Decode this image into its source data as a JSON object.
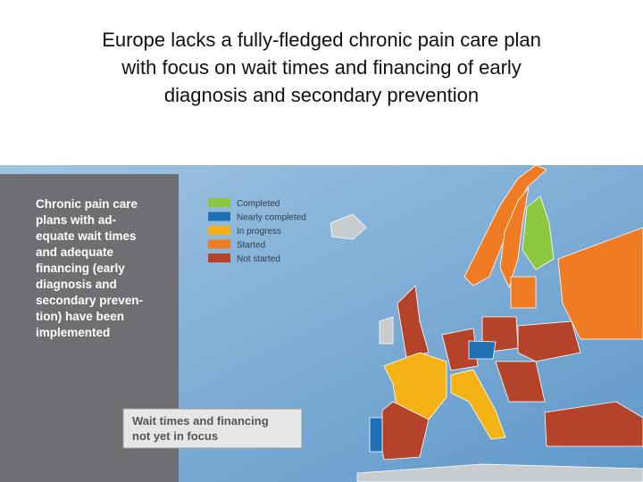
{
  "title": [
    "Europe lacks a fully-fledged chronic pain care plan",
    "with focus on wait times and financing of early",
    "diagnosis and secondary prevention"
  ],
  "panel": {
    "lines": [
      "Chronic pain care",
      "plans with ad-",
      "equate wait times",
      "and adequate",
      "financing (early",
      "diagnosis and",
      "secondary preven-",
      "tion) have been",
      "implemented"
    ]
  },
  "legend": [
    {
      "label": "Completed",
      "color": "#8dc63f"
    },
    {
      "label": "Nearly completed",
      "color": "#1f6fb5"
    },
    {
      "label": "In progress",
      "color": "#f5b214"
    },
    {
      "label": "Started",
      "color": "#ef7b22"
    },
    {
      "label": "Not started",
      "color": "#b5432a"
    }
  ],
  "note": {
    "lines": [
      "Wait times and financing",
      "not yet in focus"
    ]
  }
}
